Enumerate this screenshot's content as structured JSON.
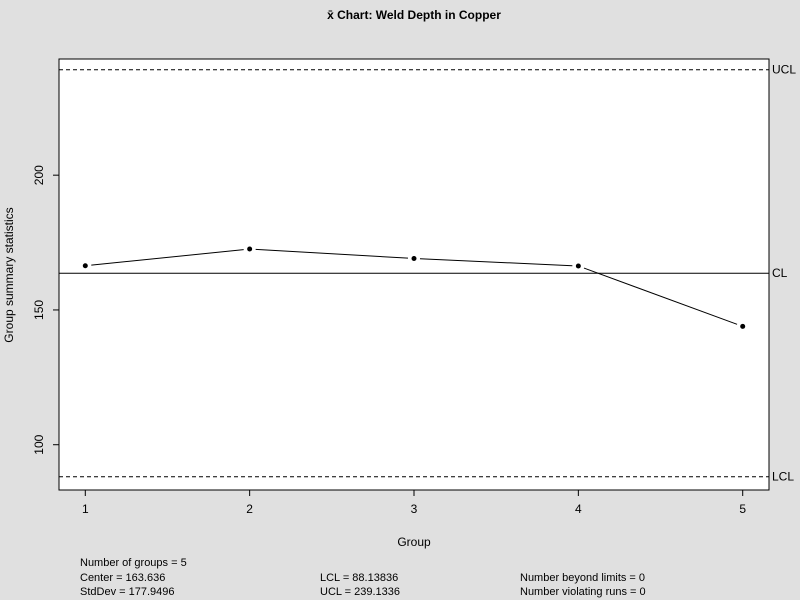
{
  "chart_data": {
    "type": "line",
    "title": "x̄ Chart: Weld Depth in Copper",
    "xlabel": "Group",
    "ylabel": "Group summary statistics",
    "x": [
      1,
      2,
      3,
      4,
      5
    ],
    "y": [
      166.4,
      172.6,
      169.1,
      166.3,
      143.9
    ],
    "x_ticks": [
      1,
      2,
      3,
      4,
      5
    ],
    "y_ticks": [
      100,
      150,
      200
    ],
    "xlim": [
      0.84,
      5.16
    ],
    "ylim": [
      83.2,
      243.1
    ],
    "reference_lines": [
      {
        "label": "UCL",
        "value": 239.1336,
        "style": "dashed"
      },
      {
        "label": "CL",
        "value": 163.636,
        "style": "solid"
      },
      {
        "label": "LCL",
        "value": 88.13836,
        "style": "dashed"
      }
    ],
    "grid": false
  },
  "stats": {
    "groups": "Number of groups = 5",
    "center": "Center = 163.636",
    "stddev": "StdDev = 177.9496",
    "lcl": "LCL = 88.13836",
    "ucl": "UCL = 239.1336",
    "beyond": "Number beyond limits = 0",
    "violating": "Number violating runs = 0"
  }
}
